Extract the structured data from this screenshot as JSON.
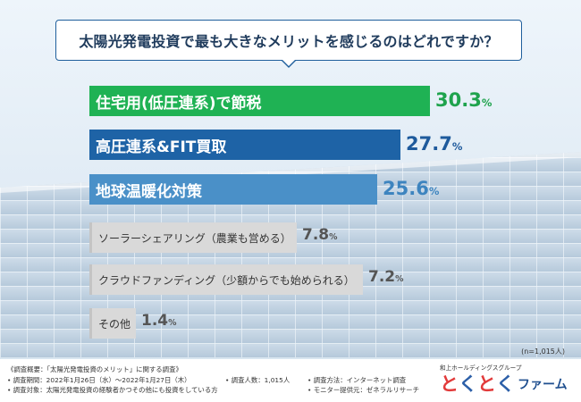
{
  "title": "太陽光発電投資で最も大きなメリットを感じるのはどれですか？",
  "chart_data": {
    "type": "bar",
    "orientation": "horizontal",
    "categories": [
      "住宅用(低圧連系)で節税",
      "高圧連系&FIT買取",
      "地球温暖化対策",
      "ソーラーシェアリング（農業も営める）",
      "クラウドファンディング（少額からでも始められる）",
      "その他"
    ],
    "values": [
      30.3,
      27.7,
      25.6,
      7.8,
      7.2,
      1.4
    ],
    "unit": "%",
    "sample_size": "(n=1,015人)",
    "colors": [
      "#1fb254",
      "#1e63a6",
      "#4a90c8",
      "#d9d9d9",
      "#d9d9d9",
      "#d9d9d9"
    ],
    "label_colors": [
      "#ffffff",
      "#ffffff",
      "#ffffff",
      "#333333",
      "#333333",
      "#333333"
    ],
    "value_colors": [
      "#1fa34d",
      "#1e5a9c",
      "#3d84bf",
      "#555555",
      "#555555",
      "#555555"
    ]
  },
  "footer": {
    "survey_overview": "《調査概要：「太陽光発電投資のメリット」に関する調査》",
    "survey_period": "• 調査期間：2022年1月26日（水）〜2022年1月27日（木）",
    "respondents": "• 調査人数：1,015人",
    "method": "• 調査方法：インターネット調査",
    "target": "• 調査対象：太陽光発電投資の経験者かつその他にも投資をしている方",
    "provider": "• モニター提供元：ゼネラルリサーチ",
    "brand_sub": "和上ホールディングスグループ",
    "brand_marks": [
      "と",
      "く",
      "と",
      "く"
    ],
    "brand_name": "ファーム"
  }
}
